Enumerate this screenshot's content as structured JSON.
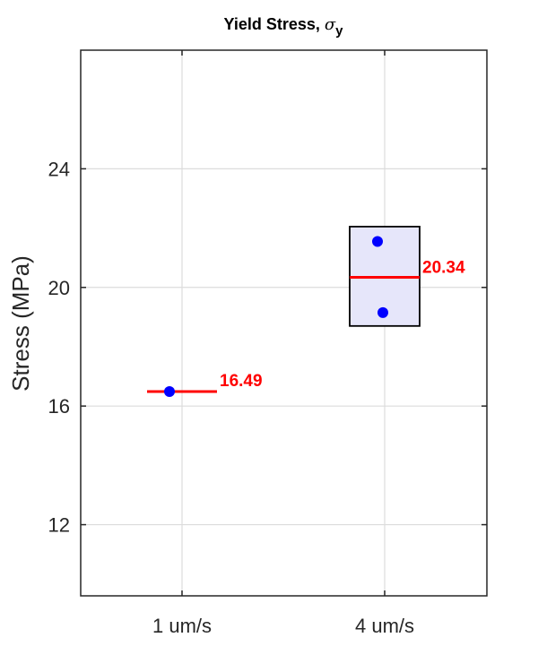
{
  "chart_data": {
    "type": "scatter",
    "title": "Yield Stress, ",
    "title_symbol": "σ",
    "title_subscript": "y",
    "ylabel": "Stress (MPa)",
    "xlabel": "",
    "categories": [
      "1 um/s",
      "4 um/s"
    ],
    "ylim": [
      9.6,
      28
    ],
    "yticks": [
      12,
      16,
      20,
      24
    ],
    "ytick_labels": [
      "12",
      "16",
      "20",
      "24"
    ],
    "grid": true,
    "groups": [
      {
        "category": "1 um/s",
        "points": [
          16.49
        ],
        "mean": 16.49,
        "mean_label": "16.49",
        "box": null
      },
      {
        "category": "4 um/s",
        "points": [
          21.55,
          19.15
        ],
        "mean": 20.34,
        "mean_label": "20.34",
        "box": [
          18.7,
          22.05
        ]
      }
    ],
    "colors": {
      "points": "#0000ff",
      "mean": "#ff0000",
      "box_fill": "#e6e6fa",
      "box_edge": "#000000",
      "grid": "#dcdcdc"
    }
  }
}
